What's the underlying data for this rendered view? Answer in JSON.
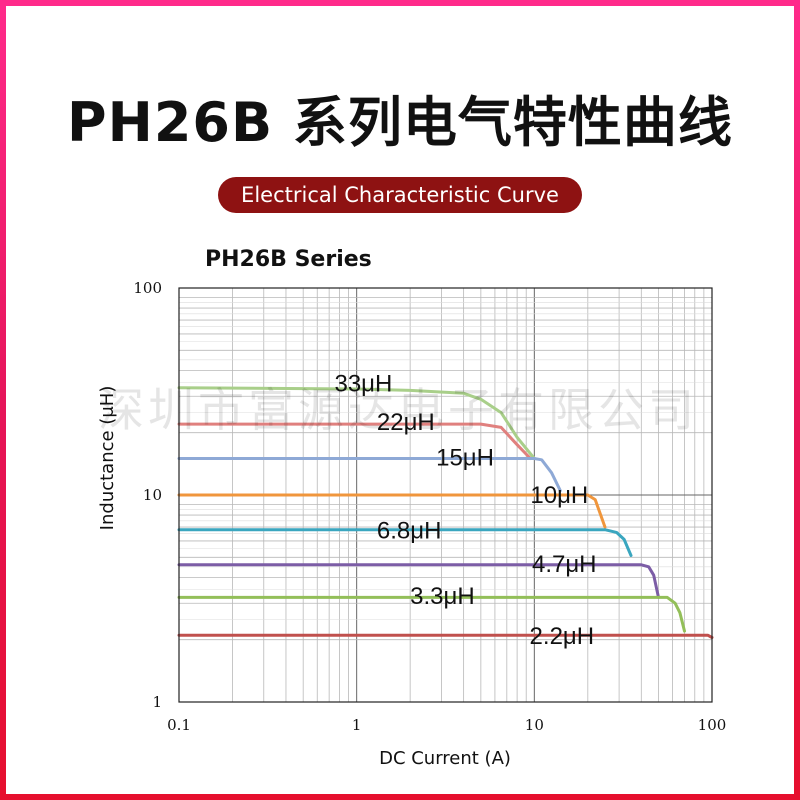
{
  "page": {
    "title": "PH26B 系列电气特性曲线",
    "subtitle": "Electrical Characteristic Curve",
    "watermark": "深圳市富源达电子有限公司"
  },
  "chart_data": {
    "type": "line",
    "title": "PH26B  Series",
    "xlabel": "DC Current  (A)",
    "ylabel": "Inductance (μH)",
    "x_scale": "log",
    "y_scale": "log",
    "xlim": [
      0.1,
      100
    ],
    "ylim": [
      1,
      100
    ],
    "x_ticks": [
      "0.1",
      "1",
      "10",
      "100"
    ],
    "y_ticks": [
      "1",
      "10",
      "100"
    ],
    "grid": true,
    "series": [
      {
        "name": "33μH",
        "color": "#a9cf8a",
        "points": [
          [
            0.1,
            33
          ],
          [
            1,
            32.5
          ],
          [
            2,
            32
          ],
          [
            4,
            31
          ],
          [
            5,
            29
          ],
          [
            6.5,
            25
          ],
          [
            8,
            19
          ],
          [
            10,
            15
          ]
        ]
      },
      {
        "name": "22μH",
        "color": "#e0807e",
        "points": [
          [
            0.1,
            22
          ],
          [
            1,
            22
          ],
          [
            3,
            22
          ],
          [
            5,
            22
          ],
          [
            6.5,
            21.2
          ],
          [
            8,
            17.5
          ],
          [
            9.5,
            15
          ]
        ]
      },
      {
        "name": "15μH",
        "color": "#8ea9d6",
        "points": [
          [
            0.1,
            15
          ],
          [
            1,
            15
          ],
          [
            5,
            15
          ],
          [
            10,
            15
          ],
          [
            11,
            14.8
          ],
          [
            12.5,
            12.8
          ],
          [
            14,
            10.5
          ]
        ]
      },
      {
        "name": "10μH",
        "color": "#f0963c",
        "points": [
          [
            0.1,
            10
          ],
          [
            1,
            10
          ],
          [
            10,
            10
          ],
          [
            20,
            10
          ],
          [
            22,
            9.5
          ],
          [
            25,
            7
          ]
        ]
      },
      {
        "name": "6.8μH",
        "color": "#3aa6bf",
        "points": [
          [
            0.1,
            6.8
          ],
          [
            1,
            6.8
          ],
          [
            10,
            6.8
          ],
          [
            25,
            6.8
          ],
          [
            29,
            6.6
          ],
          [
            32,
            6.1
          ],
          [
            35,
            5.1
          ]
        ]
      },
      {
        "name": "4.7μH",
        "color": "#7c5da6",
        "points": [
          [
            0.1,
            4.6
          ],
          [
            1,
            4.6
          ],
          [
            10,
            4.6
          ],
          [
            40,
            4.6
          ],
          [
            44,
            4.5
          ],
          [
            47,
            4.1
          ],
          [
            50,
            3.2
          ]
        ]
      },
      {
        "name": "3.3μH",
        "color": "#93bf59",
        "points": [
          [
            0.1,
            3.2
          ],
          [
            1,
            3.2
          ],
          [
            10,
            3.2
          ],
          [
            50,
            3.2
          ],
          [
            56,
            3.2
          ],
          [
            62,
            3.0
          ],
          [
            66,
            2.7
          ],
          [
            70,
            2.2
          ]
        ]
      },
      {
        "name": "2.2μH",
        "color": "#c0504d",
        "points": [
          [
            0.1,
            2.1
          ],
          [
            1,
            2.1
          ],
          [
            10,
            2.1
          ],
          [
            95,
            2.1
          ],
          [
            100,
            2.05
          ]
        ]
      }
    ],
    "labels": [
      {
        "text": "33μH",
        "x": 0.75,
        "y": 34.5
      },
      {
        "text": "22μH",
        "x": 1.3,
        "y": 22.5
      },
      {
        "text": "15μH",
        "x": 2.8,
        "y": 15.2
      },
      {
        "text": "10μH",
        "x": 9.5,
        "y": 10.0
      },
      {
        "text": "6.8μH",
        "x": 1.3,
        "y": 6.75
      },
      {
        "text": "4.7μH",
        "x": 9.7,
        "y": 4.65
      },
      {
        "text": "3.3μH",
        "x": 2.0,
        "y": 3.25
      },
      {
        "text": "2.2μH",
        "x": 9.4,
        "y": 2.08
      }
    ]
  }
}
